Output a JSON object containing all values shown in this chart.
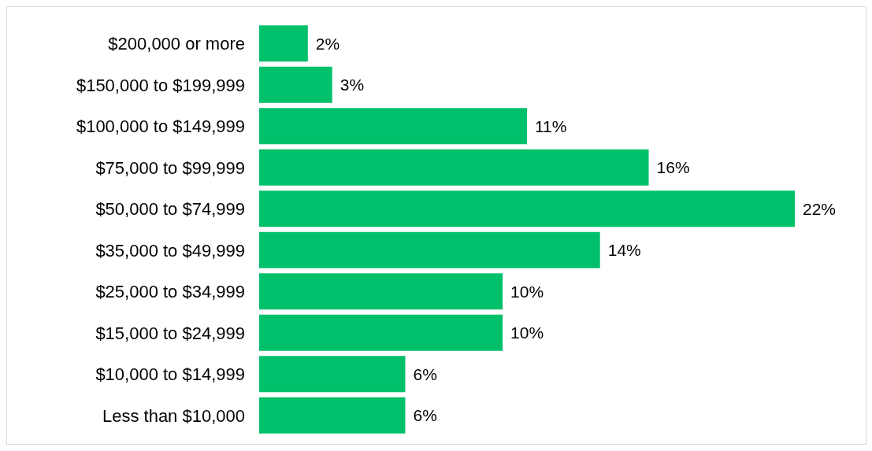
{
  "chart_data": {
    "type": "bar",
    "orientation": "horizontal",
    "categories": [
      "$200,000 or more",
      "$150,000 to $199,999",
      "$100,000 to $149,999",
      "$75,000 to $99,999",
      "$50,000 to $74,999",
      "$35,000 to $49,999",
      "$25,000 to $34,999",
      "$15,000 to $24,999",
      "$10,000 to $14,999",
      "Less than $10,000"
    ],
    "values": [
      2,
      3,
      11,
      16,
      22,
      14,
      10,
      10,
      6,
      6
    ],
    "value_labels": [
      "2%",
      "3%",
      "11%",
      "16%",
      "22%",
      "14%",
      "10%",
      "10%",
      "6%",
      "6%"
    ],
    "color": "#00c06b"
  }
}
